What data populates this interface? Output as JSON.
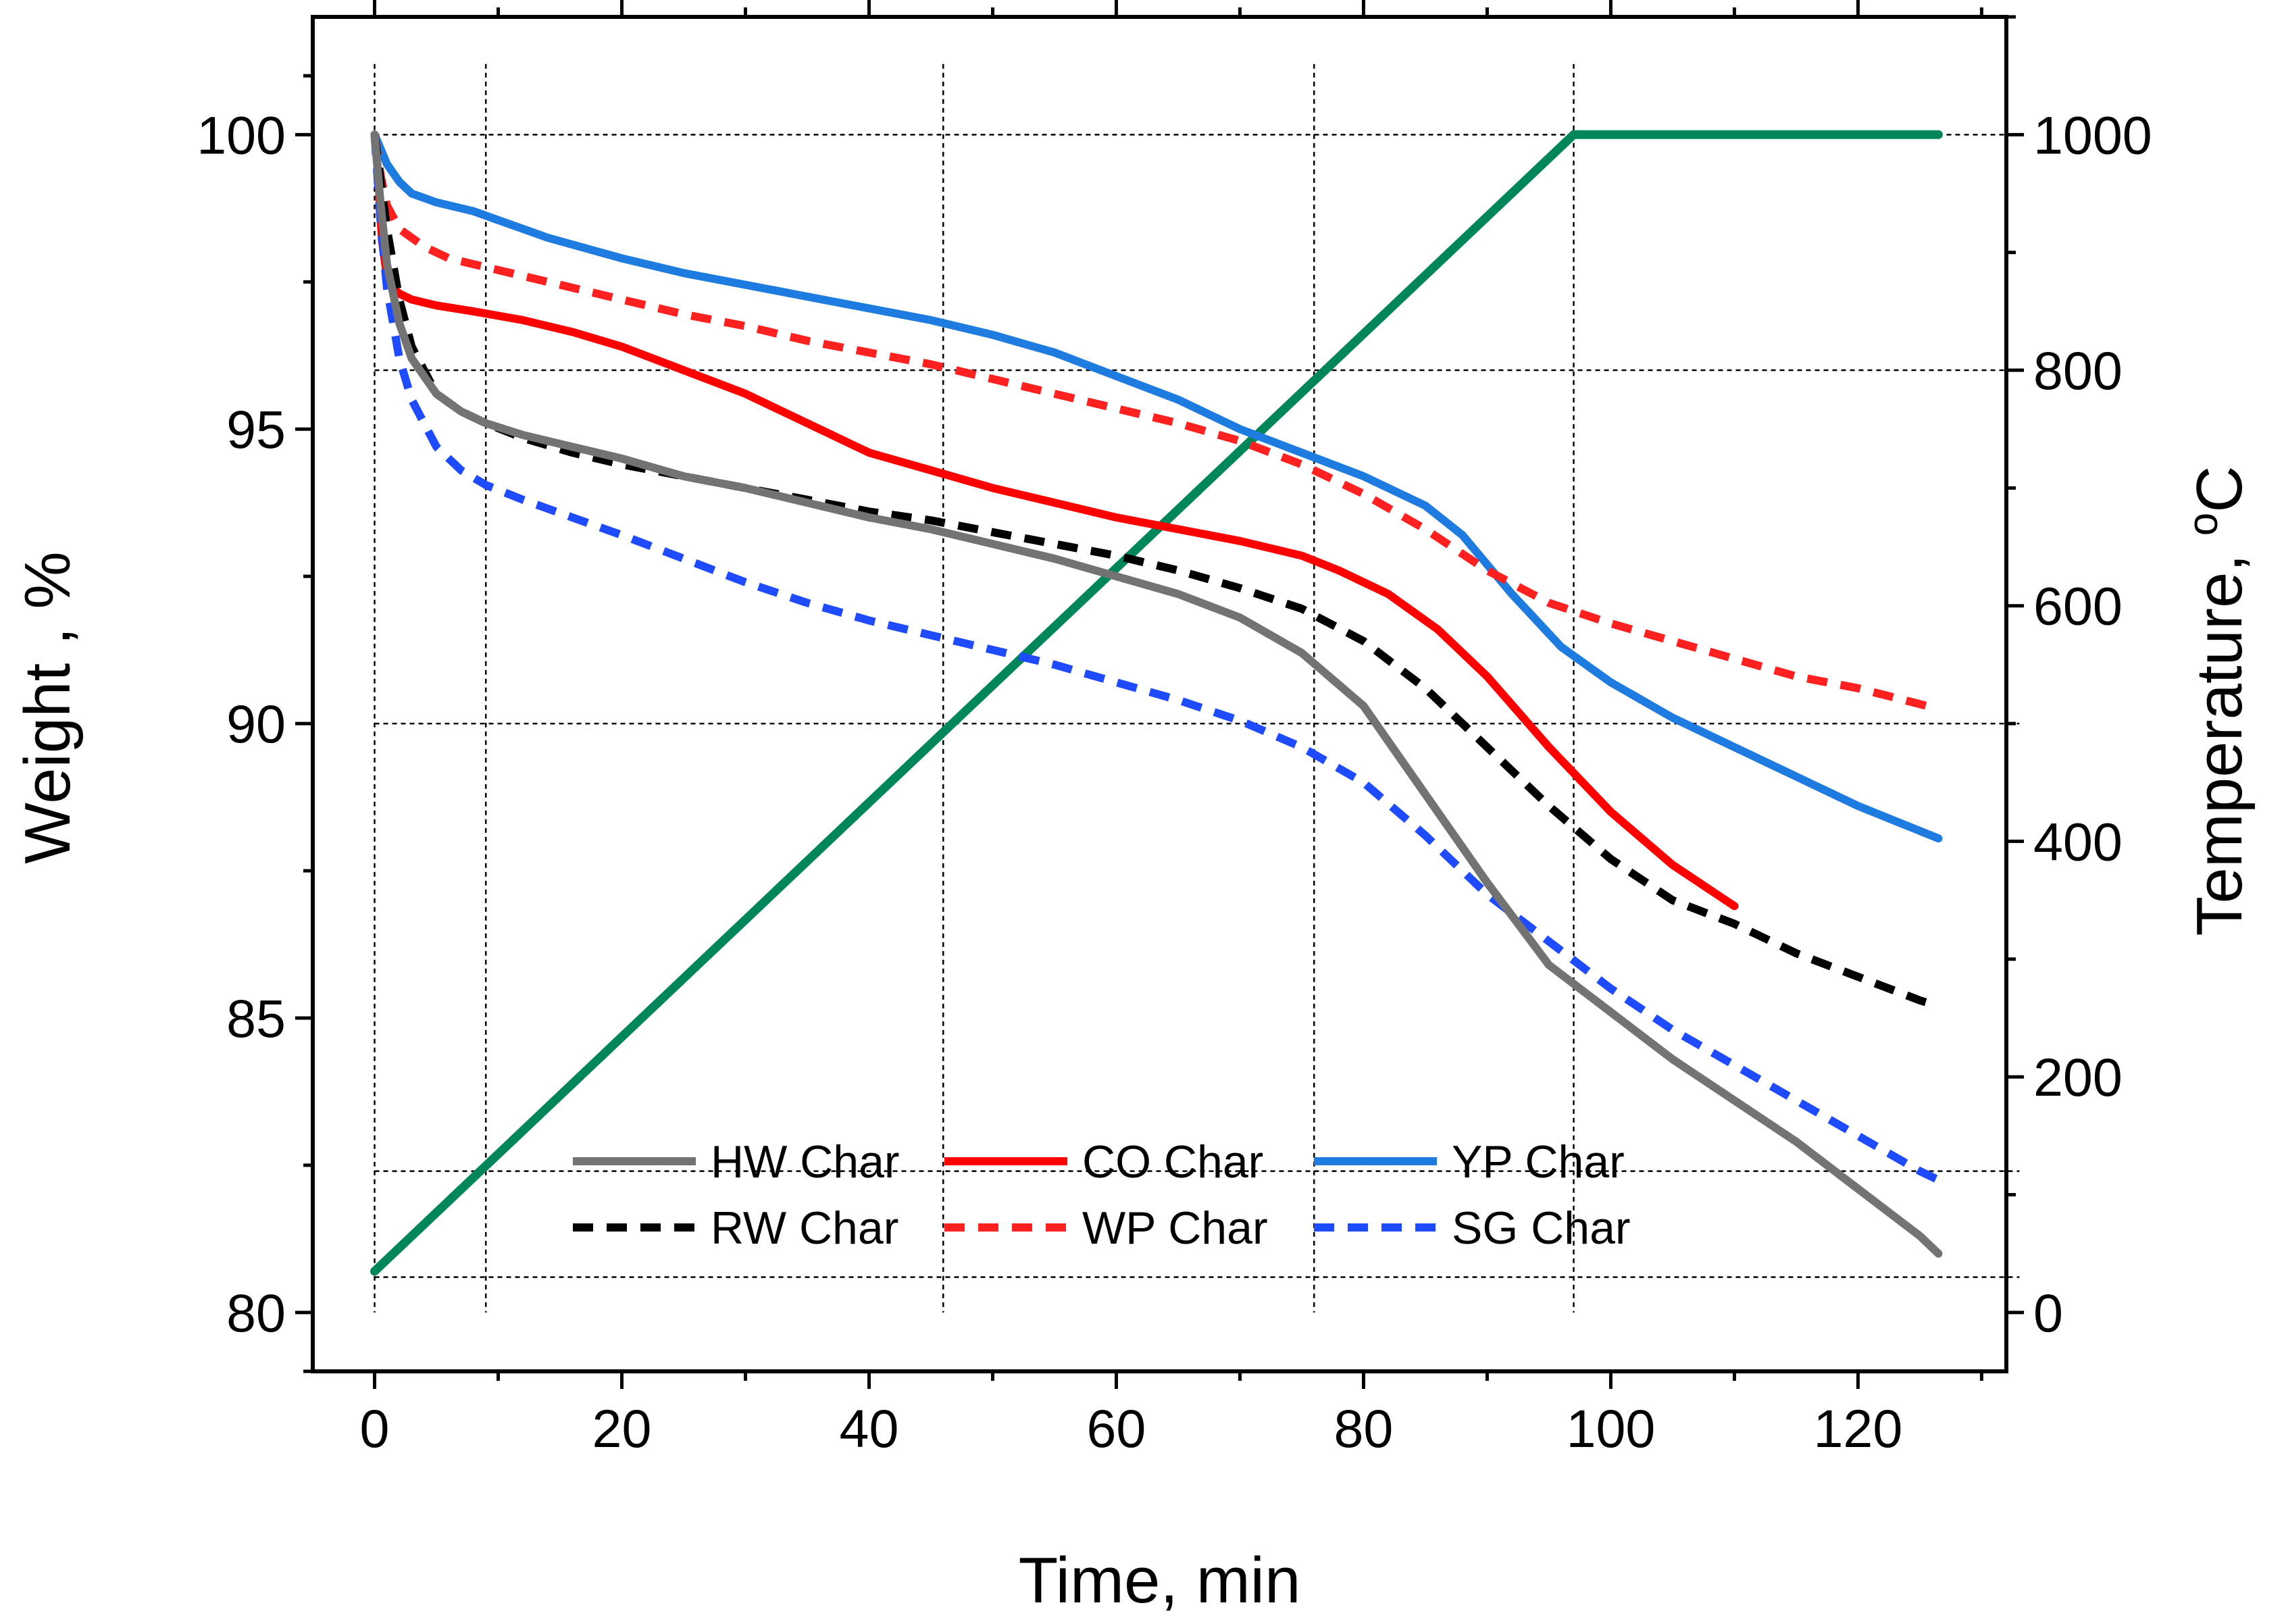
{
  "chart_data": {
    "type": "line",
    "xlabel": "Time, min",
    "ylabel": "Weight , %",
    "y2label_main": "Temperature, ",
    "y2label_unit": "C",
    "y2label_degree": "o",
    "xlim": [
      -5,
      132
    ],
    "ylim": [
      79,
      102
    ],
    "y2lim": [
      -50,
      1100
    ],
    "xticks": [
      0,
      20,
      40,
      60,
      80,
      100,
      120
    ],
    "yticks": [
      80,
      85,
      90,
      95,
      100
    ],
    "y2ticks": [
      0,
      200,
      400,
      600,
      800,
      1000
    ],
    "reference_lines": {
      "x": [
        0,
        9,
        46,
        76,
        97
      ],
      "y": [
        100,
        96,
        90,
        82.4,
        80.6
      ]
    },
    "colors": {
      "hw": "#737373",
      "co": "#ff0000",
      "yp": "#1e7bdf",
      "rw": "#000000",
      "wp": "#ff2020",
      "sg": "#1f4bff",
      "temperature": "#00865a",
      "axis": "#000000",
      "grid": "#000000"
    },
    "series": [
      {
        "name": "HW Char",
        "key": "hw",
        "style": "solid",
        "axis": "left",
        "x": [
          0,
          0.5,
          1,
          2,
          3,
          5,
          7,
          9,
          12,
          16,
          20,
          25,
          30,
          35,
          40,
          45,
          50,
          55,
          60,
          65,
          70,
          75,
          80,
          85,
          90,
          95,
          100,
          105,
          110,
          115,
          120,
          125,
          126.5
        ],
        "y": [
          100,
          98.8,
          97.8,
          96.8,
          96.2,
          95.6,
          95.3,
          95.1,
          94.9,
          94.7,
          94.5,
          94.2,
          94.0,
          93.75,
          93.5,
          93.3,
          93.05,
          92.8,
          92.5,
          92.2,
          91.8,
          91.2,
          90.3,
          88.8,
          87.3,
          85.9,
          85.1,
          84.3,
          83.6,
          82.9,
          82.1,
          81.3,
          81.0
        ]
      },
      {
        "name": "CO Char",
        "key": "co",
        "style": "solid",
        "axis": "left",
        "x": [
          0,
          0.3,
          0.6,
          1,
          1.5,
          2,
          3,
          5,
          8,
          12,
          16,
          20,
          25,
          30,
          35,
          40,
          45,
          50,
          55,
          60,
          65,
          70,
          75,
          78,
          82,
          86,
          90,
          95,
          100,
          105,
          110
        ],
        "y": [
          100,
          99.3,
          98.2,
          97.6,
          97.4,
          97.3,
          97.2,
          97.1,
          97.0,
          96.85,
          96.65,
          96.4,
          96.0,
          95.6,
          95.1,
          94.6,
          94.3,
          94.0,
          93.75,
          93.5,
          93.3,
          93.1,
          92.85,
          92.6,
          92.2,
          91.6,
          90.8,
          89.6,
          88.5,
          87.6,
          86.9
        ]
      },
      {
        "name": "YP Char",
        "key": "yp",
        "style": "solid",
        "axis": "left",
        "x": [
          0,
          1,
          2,
          3,
          5,
          8,
          10,
          14,
          20,
          25,
          30,
          35,
          40,
          45,
          50,
          55,
          60,
          65,
          70,
          75,
          80,
          85,
          88,
          92,
          96,
          100,
          105,
          110,
          115,
          120,
          126.5
        ],
        "y": [
          100,
          99.5,
          99.2,
          99.0,
          98.85,
          98.7,
          98.55,
          98.25,
          97.9,
          97.65,
          97.45,
          97.25,
          97.05,
          96.85,
          96.6,
          96.3,
          95.9,
          95.5,
          95.0,
          94.6,
          94.2,
          93.7,
          93.2,
          92.2,
          91.3,
          90.7,
          90.1,
          89.6,
          89.1,
          88.6,
          88.05
        ]
      },
      {
        "name": "RW Char",
        "key": "rw",
        "style": "dash",
        "axis": "left",
        "x": [
          0,
          0.5,
          1,
          2,
          3,
          5,
          7,
          9,
          12,
          16,
          20,
          25,
          30,
          35,
          40,
          45,
          50,
          55,
          60,
          65,
          70,
          75,
          80,
          85,
          90,
          95,
          100,
          105,
          110,
          115,
          120,
          125,
          126.5
        ],
        "y": [
          100,
          99.2,
          98.4,
          97.2,
          96.4,
          95.6,
          95.3,
          95.1,
          94.85,
          94.6,
          94.4,
          94.2,
          94.0,
          93.8,
          93.6,
          93.45,
          93.25,
          93.05,
          92.85,
          92.6,
          92.3,
          91.95,
          91.4,
          90.6,
          89.6,
          88.6,
          87.7,
          87.0,
          86.6,
          86.1,
          85.7,
          85.3,
          85.2
        ]
      },
      {
        "name": "WP Char",
        "key": "wp",
        "style": "dash",
        "axis": "left",
        "x": [
          0,
          0.5,
          1,
          2,
          4,
          6,
          10,
          15,
          20,
          25,
          30,
          35,
          40,
          45,
          50,
          55,
          60,
          65,
          70,
          75,
          80,
          85,
          90,
          95,
          100,
          105,
          110,
          115,
          120,
          126.5
        ],
        "y": [
          100,
          99.3,
          98.8,
          98.4,
          98.1,
          97.9,
          97.7,
          97.45,
          97.2,
          96.95,
          96.75,
          96.5,
          96.3,
          96.1,
          95.85,
          95.6,
          95.35,
          95.1,
          94.8,
          94.4,
          93.9,
          93.3,
          92.6,
          92.05,
          91.7,
          91.4,
          91.1,
          90.8,
          90.6,
          90.25
        ]
      },
      {
        "name": "SG Char",
        "key": "sg",
        "style": "dash",
        "axis": "left",
        "x": [
          0,
          0.5,
          1,
          2,
          3,
          5,
          7,
          9,
          12,
          16,
          20,
          25,
          30,
          35,
          40,
          45,
          50,
          55,
          60,
          65,
          70,
          75,
          80,
          85,
          90,
          95,
          100,
          105,
          110,
          115,
          120,
          125,
          126.5
        ],
        "y": [
          100,
          98.5,
          97.4,
          96.2,
          95.5,
          94.7,
          94.3,
          94.05,
          93.8,
          93.5,
          93.2,
          92.8,
          92.4,
          92.05,
          91.75,
          91.5,
          91.25,
          91.0,
          90.7,
          90.4,
          90.05,
          89.6,
          89.0,
          88.1,
          87.1,
          86.3,
          85.5,
          84.8,
          84.2,
          83.6,
          83.0,
          82.4,
          82.25
        ]
      },
      {
        "name": "Temperature",
        "key": "temperature",
        "style": "solid",
        "axis": "right",
        "in_legend": false,
        "x": [
          0,
          97,
          98,
          126.5
        ],
        "y": [
          35,
          1000,
          1000,
          1000
        ]
      }
    ]
  }
}
